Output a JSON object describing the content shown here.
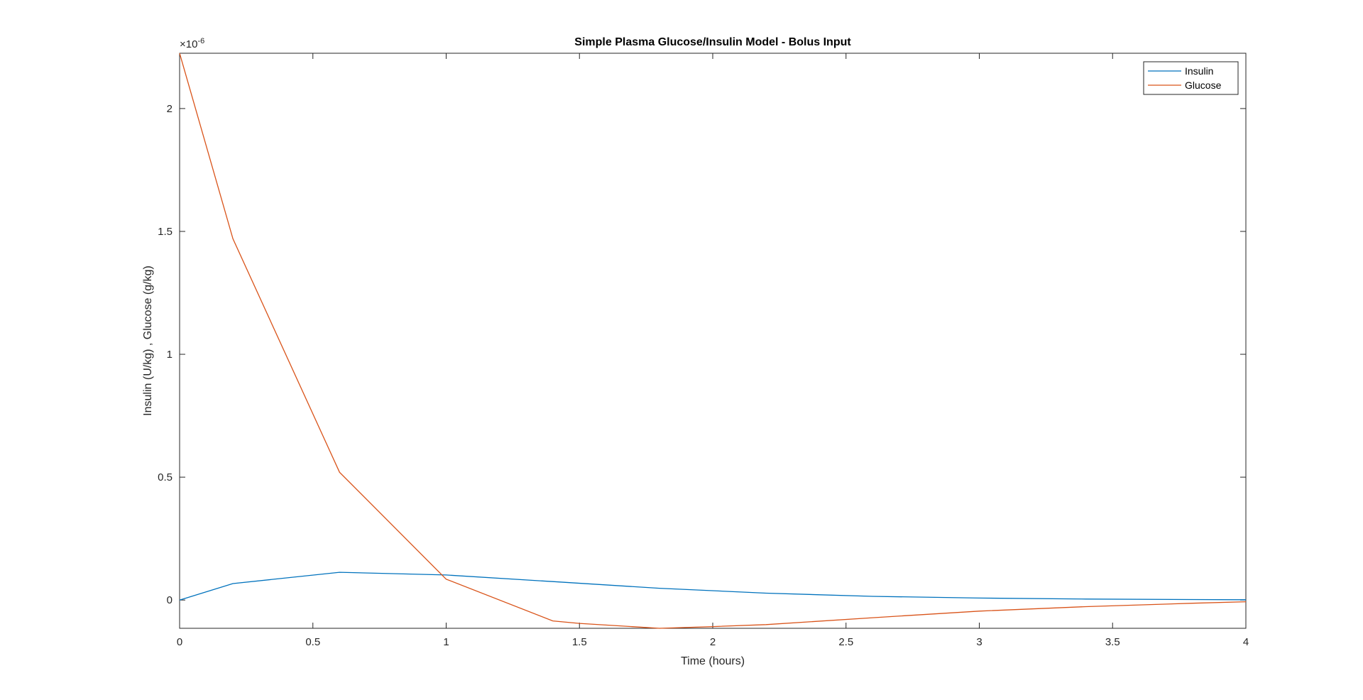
{
  "chart_data": {
    "type": "line",
    "title": "Simple Plasma Glucose/Insulin Model - Bolus Input",
    "xlabel": "Time (hours)",
    "ylabel": "Insulin (U/kg) ,  Glucose (g/kg)",
    "exponent_label": "×10",
    "exponent_power": "-6",
    "xlim": [
      0,
      4
    ],
    "ylim": [
      -0.115,
      2.225
    ],
    "y_scale_note": "values in units of 1e-6",
    "xticks": [
      0,
      0.5,
      1,
      1.5,
      2,
      2.5,
      3,
      3.5,
      4
    ],
    "xtick_labels": [
      "0",
      "0.5",
      "1",
      "1.5",
      "2",
      "2.5",
      "3",
      "3.5",
      "4"
    ],
    "yticks": [
      0,
      0.5,
      1,
      1.5,
      2
    ],
    "ytick_labels": [
      "0",
      "0.5",
      "1",
      "1.5",
      "2"
    ],
    "grid": false,
    "legend_position": "top-right",
    "series": [
      {
        "name": "Insulin",
        "color": "#0072BD",
        "x": [
          0,
          0.2,
          0.6,
          1.0,
          1.4,
          1.8,
          2.2,
          2.6,
          3.0,
          3.4,
          3.8,
          4.0
        ],
        "y": [
          0,
          0.067,
          0.113,
          0.102,
          0.075,
          0.048,
          0.028,
          0.015,
          0.008,
          0.004,
          0.002,
          0.001
        ]
      },
      {
        "name": "Glucose",
        "color": "#D95319",
        "x": [
          0,
          0.2,
          0.6,
          1.0,
          1.4,
          1.5,
          1.8,
          2.0,
          2.2,
          2.6,
          3.0,
          3.4,
          3.8,
          4.0
        ],
        "y": [
          2.225,
          1.47,
          0.52,
          0.085,
          -0.085,
          -0.095,
          -0.115,
          -0.108,
          -0.1,
          -0.072,
          -0.045,
          -0.027,
          -0.013,
          -0.007
        ]
      }
    ]
  }
}
